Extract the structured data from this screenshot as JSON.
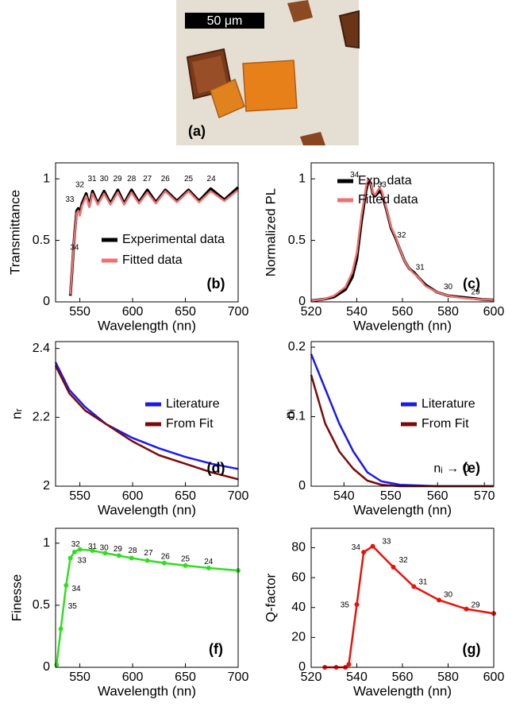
{
  "panel_a": {
    "scale_bar": "50 μm",
    "label": "(a)"
  },
  "chart_data": [
    {
      "type": "line",
      "panel_label": "(b)",
      "xlabel": "Wavelength (nn)",
      "ylabel": "Transmittance",
      "xlim": [
        527,
        700
      ],
      "ylim": [
        0,
        1.13
      ],
      "xticks": [
        550,
        600,
        650,
        700
      ],
      "yticks": [
        0,
        0.5,
        1
      ],
      "legend": "lower right",
      "series": [
        {
          "name": "Experimental data",
          "color": "#000000",
          "x": [
            541,
            543,
            545,
            547,
            548.5,
            550,
            552,
            556,
            559,
            562,
            567,
            573,
            579,
            586,
            592,
            599,
            606,
            614,
            622,
            631,
            642,
            653,
            663,
            674,
            687,
            700
          ],
          "values": [
            0.05,
            0.3,
            0.55,
            0.74,
            0.76,
            0.72,
            0.8,
            0.88,
            0.78,
            0.9,
            0.8,
            0.9,
            0.8,
            0.91,
            0.8,
            0.91,
            0.81,
            0.91,
            0.81,
            0.91,
            0.82,
            0.91,
            0.82,
            0.92,
            0.83,
            0.93
          ]
        },
        {
          "name": "Fitted data",
          "color": "#f07070",
          "x": [
            541,
            543,
            545,
            547,
            548.5,
            550,
            552,
            556,
            559,
            562,
            567,
            573,
            579,
            586,
            592,
            599,
            606,
            614,
            622,
            631,
            642,
            653,
            663,
            674,
            687,
            700
          ],
          "values": [
            0.06,
            0.31,
            0.54,
            0.72,
            0.74,
            0.7,
            0.78,
            0.86,
            0.77,
            0.88,
            0.79,
            0.88,
            0.79,
            0.89,
            0.79,
            0.89,
            0.8,
            0.89,
            0.8,
            0.9,
            0.81,
            0.9,
            0.81,
            0.9,
            0.82,
            0.91
          ]
        }
      ],
      "annotations": [
        {
          "text": "33",
          "x": 540.5,
          "y": 0.83
        },
        {
          "text": "34",
          "x": 545,
          "y": 0.44
        },
        {
          "text": "32",
          "x": 550,
          "y": 0.95
        },
        {
          "text": "31",
          "x": 561.6,
          "y": 1.0
        },
        {
          "text": "30",
          "x": 573,
          "y": 1.0
        },
        {
          "text": "29",
          "x": 585.7,
          "y": 1.0
        },
        {
          "text": "28",
          "x": 599,
          "y": 1.0
        },
        {
          "text": "27",
          "x": 614,
          "y": 1.0
        },
        {
          "text": "26",
          "x": 631,
          "y": 1.0
        },
        {
          "text": "25",
          "x": 653,
          "y": 1.0
        },
        {
          "text": "24",
          "x": 674.5,
          "y": 1.0
        }
      ]
    },
    {
      "type": "line",
      "panel_label": "(c)",
      "xlabel": "Wavelength (nn)",
      "ylabel": "Normalized PL",
      "xlim": [
        520,
        600
      ],
      "ylim": [
        0,
        1.13
      ],
      "xticks": [
        520,
        540,
        560,
        580,
        600
      ],
      "yticks": [
        0,
        0.5,
        1
      ],
      "legend": "upper right",
      "series": [
        {
          "name": "Exp. data",
          "color": "#000000",
          "x": [
            520,
            525,
            530,
            535,
            538,
            540,
            542,
            544,
            545,
            546,
            547,
            548,
            550,
            551,
            553,
            555,
            557,
            559,
            561,
            563,
            565,
            567,
            570,
            575,
            580,
            585,
            590,
            595,
            600
          ],
          "values": [
            0.01,
            0.02,
            0.04,
            0.1,
            0.2,
            0.35,
            0.65,
            0.9,
            0.98,
            0.97,
            0.88,
            0.86,
            0.9,
            0.88,
            0.75,
            0.6,
            0.52,
            0.42,
            0.33,
            0.27,
            0.24,
            0.2,
            0.14,
            0.08,
            0.05,
            0.04,
            0.03,
            0.02,
            0.015
          ]
        },
        {
          "name": "Fitted data",
          "color": "#f07070",
          "x": [
            520,
            525,
            530,
            535,
            538,
            540,
            542,
            544,
            545,
            546,
            547,
            548,
            550,
            551,
            553,
            555,
            557,
            559,
            561,
            563,
            565,
            567,
            570,
            575,
            580,
            585,
            590,
            595,
            600
          ],
          "values": [
            0.01,
            0.02,
            0.05,
            0.12,
            0.24,
            0.4,
            0.7,
            0.93,
            1,
            0.98,
            0.89,
            0.87,
            0.93,
            0.9,
            0.76,
            0.61,
            0.53,
            0.42,
            0.33,
            0.27,
            0.23,
            0.2,
            0.13,
            0.08,
            0.05,
            0.035,
            0.025,
            0.02,
            0.015
          ]
        }
      ],
      "annotations": [
        {
          "text": "34",
          "x": 539,
          "y": 1.03
        },
        {
          "text": "33",
          "x": 551,
          "y": 0.95
        },
        {
          "text": "32",
          "x": 559.6,
          "y": 0.54
        },
        {
          "text": "31",
          "x": 567.7,
          "y": 0.28
        },
        {
          "text": "30",
          "x": 580,
          "y": 0.12
        },
        {
          "text": "29",
          "x": 592,
          "y": 0.08
        }
      ]
    },
    {
      "type": "line",
      "panel_label": "(d)",
      "xlabel": "Wavelength (nn)",
      "ylabel": "nᵣ",
      "xlim": [
        527,
        700
      ],
      "ylim": [
        2,
        2.42
      ],
      "xticks": [
        550,
        600,
        650,
        700
      ],
      "yticks": [
        2,
        2.2,
        2.4
      ],
      "legend": "center right",
      "series": [
        {
          "name": "Literature",
          "color": "#1a1aee",
          "x": [
            527,
            540,
            555,
            575,
            600,
            625,
            650,
            675,
            700
          ],
          "values": [
            2.36,
            2.28,
            2.23,
            2.18,
            2.14,
            2.11,
            2.085,
            2.065,
            2.05
          ]
        },
        {
          "name": "From Fit",
          "color": "#7a0a0a",
          "x": [
            527,
            540,
            555,
            575,
            600,
            625,
            650,
            675,
            700
          ],
          "values": [
            2.35,
            2.27,
            2.22,
            2.18,
            2.13,
            2.09,
            2.065,
            2.04,
            2.02
          ]
        }
      ],
      "annotations": []
    },
    {
      "type": "line",
      "panel_label": "(e)",
      "xlabel": "Wavelength (nn)",
      "ylabel": "nᵢ",
      "xlim": [
        533,
        572
      ],
      "ylim": [
        0,
        0.208
      ],
      "xticks": [
        540,
        550,
        560,
        570
      ],
      "yticks": [
        0,
        0.1,
        0.2
      ],
      "legend": "center right",
      "series": [
        {
          "name": "Literature",
          "color": "#1a1aee",
          "x": [
            533,
            536,
            539,
            542,
            545,
            548,
            552,
            560,
            572
          ],
          "values": [
            0.19,
            0.14,
            0.09,
            0.05,
            0.02,
            0.007,
            0.002,
            0,
            0
          ]
        },
        {
          "name": "From Fit",
          "color": "#7a0a0a",
          "x": [
            533,
            536,
            539,
            542,
            545,
            548,
            552,
            560,
            572
          ],
          "values": [
            0.16,
            0.09,
            0.05,
            0.025,
            0.008,
            0.002,
            0,
            0,
            0
          ]
        }
      ],
      "annotations": [
        {
          "text": "nᵢ → 0",
          "x": 563,
          "y": 0.025
        }
      ]
    },
    {
      "type": "line",
      "panel_label": "(f)",
      "xlabel": "Wavelength (nn)",
      "ylabel": "Finesse",
      "xlim": [
        527,
        700
      ],
      "ylim": [
        0,
        1.12
      ],
      "xticks": [
        550,
        600,
        650,
        700
      ],
      "yticks": [
        0,
        0.5,
        1
      ],
      "markers": true,
      "series": [
        {
          "color": "#33dd22",
          "x": [
            528,
            532,
            537,
            541,
            545,
            550,
            562,
            574,
            587,
            599,
            614,
            630,
            650,
            672,
            700
          ],
          "values": [
            0.02,
            0.31,
            0.66,
            0.88,
            0.93,
            0.95,
            0.94,
            0.92,
            0.9,
            0.88,
            0.86,
            0.84,
            0.82,
            0.8,
            0.78
          ]
        }
      ],
      "annotations": [
        {
          "text": "35",
          "x": 543,
          "y": 0.49
        },
        {
          "text": "34",
          "x": 546.6,
          "y": 0.63
        },
        {
          "text": "33",
          "x": 552,
          "y": 0.86
        },
        {
          "text": "32",
          "x": 546,
          "y": 0.99
        },
        {
          "text": "31",
          "x": 562,
          "y": 0.97
        },
        {
          "text": "30",
          "x": 573,
          "y": 0.96
        },
        {
          "text": "29",
          "x": 586,
          "y": 0.95
        },
        {
          "text": "28",
          "x": 600,
          "y": 0.94
        },
        {
          "text": "27",
          "x": 615,
          "y": 0.92
        },
        {
          "text": "26",
          "x": 631,
          "y": 0.89
        },
        {
          "text": "25",
          "x": 650,
          "y": 0.87
        },
        {
          "text": "24",
          "x": 672,
          "y": 0.85
        }
      ]
    },
    {
      "type": "line",
      "panel_label": "(g)",
      "xlabel": "Wavelength (nn)",
      "ylabel": "Q-factor",
      "xlim": [
        520,
        600
      ],
      "ylim": [
        0,
        93
      ],
      "xticks": [
        520,
        540,
        560,
        580,
        600
      ],
      "yticks": [
        0,
        20,
        40,
        60,
        80
      ],
      "markers": true,
      "series": [
        {
          "color": "#e8120c",
          "x": [
            526,
            531,
            535,
            536.5,
            540,
            543,
            547,
            556,
            565,
            576,
            588,
            600
          ],
          "values": [
            0,
            0,
            0,
            2,
            42,
            77,
            81,
            67,
            54,
            45,
            39,
            36
          ]
        }
      ],
      "annotations": [
        {
          "text": "35",
          "x": 534.7,
          "y": 41.6
        },
        {
          "text": "34",
          "x": 539.6,
          "y": 80
        },
        {
          "text": "33",
          "x": 553,
          "y": 84
        },
        {
          "text": "32",
          "x": 560.4,
          "y": 71.5
        },
        {
          "text": "31",
          "x": 569,
          "y": 57
        },
        {
          "text": "30",
          "x": 580,
          "y": 48.5
        },
        {
          "text": "29",
          "x": 592,
          "y": 41.6
        }
      ]
    }
  ]
}
